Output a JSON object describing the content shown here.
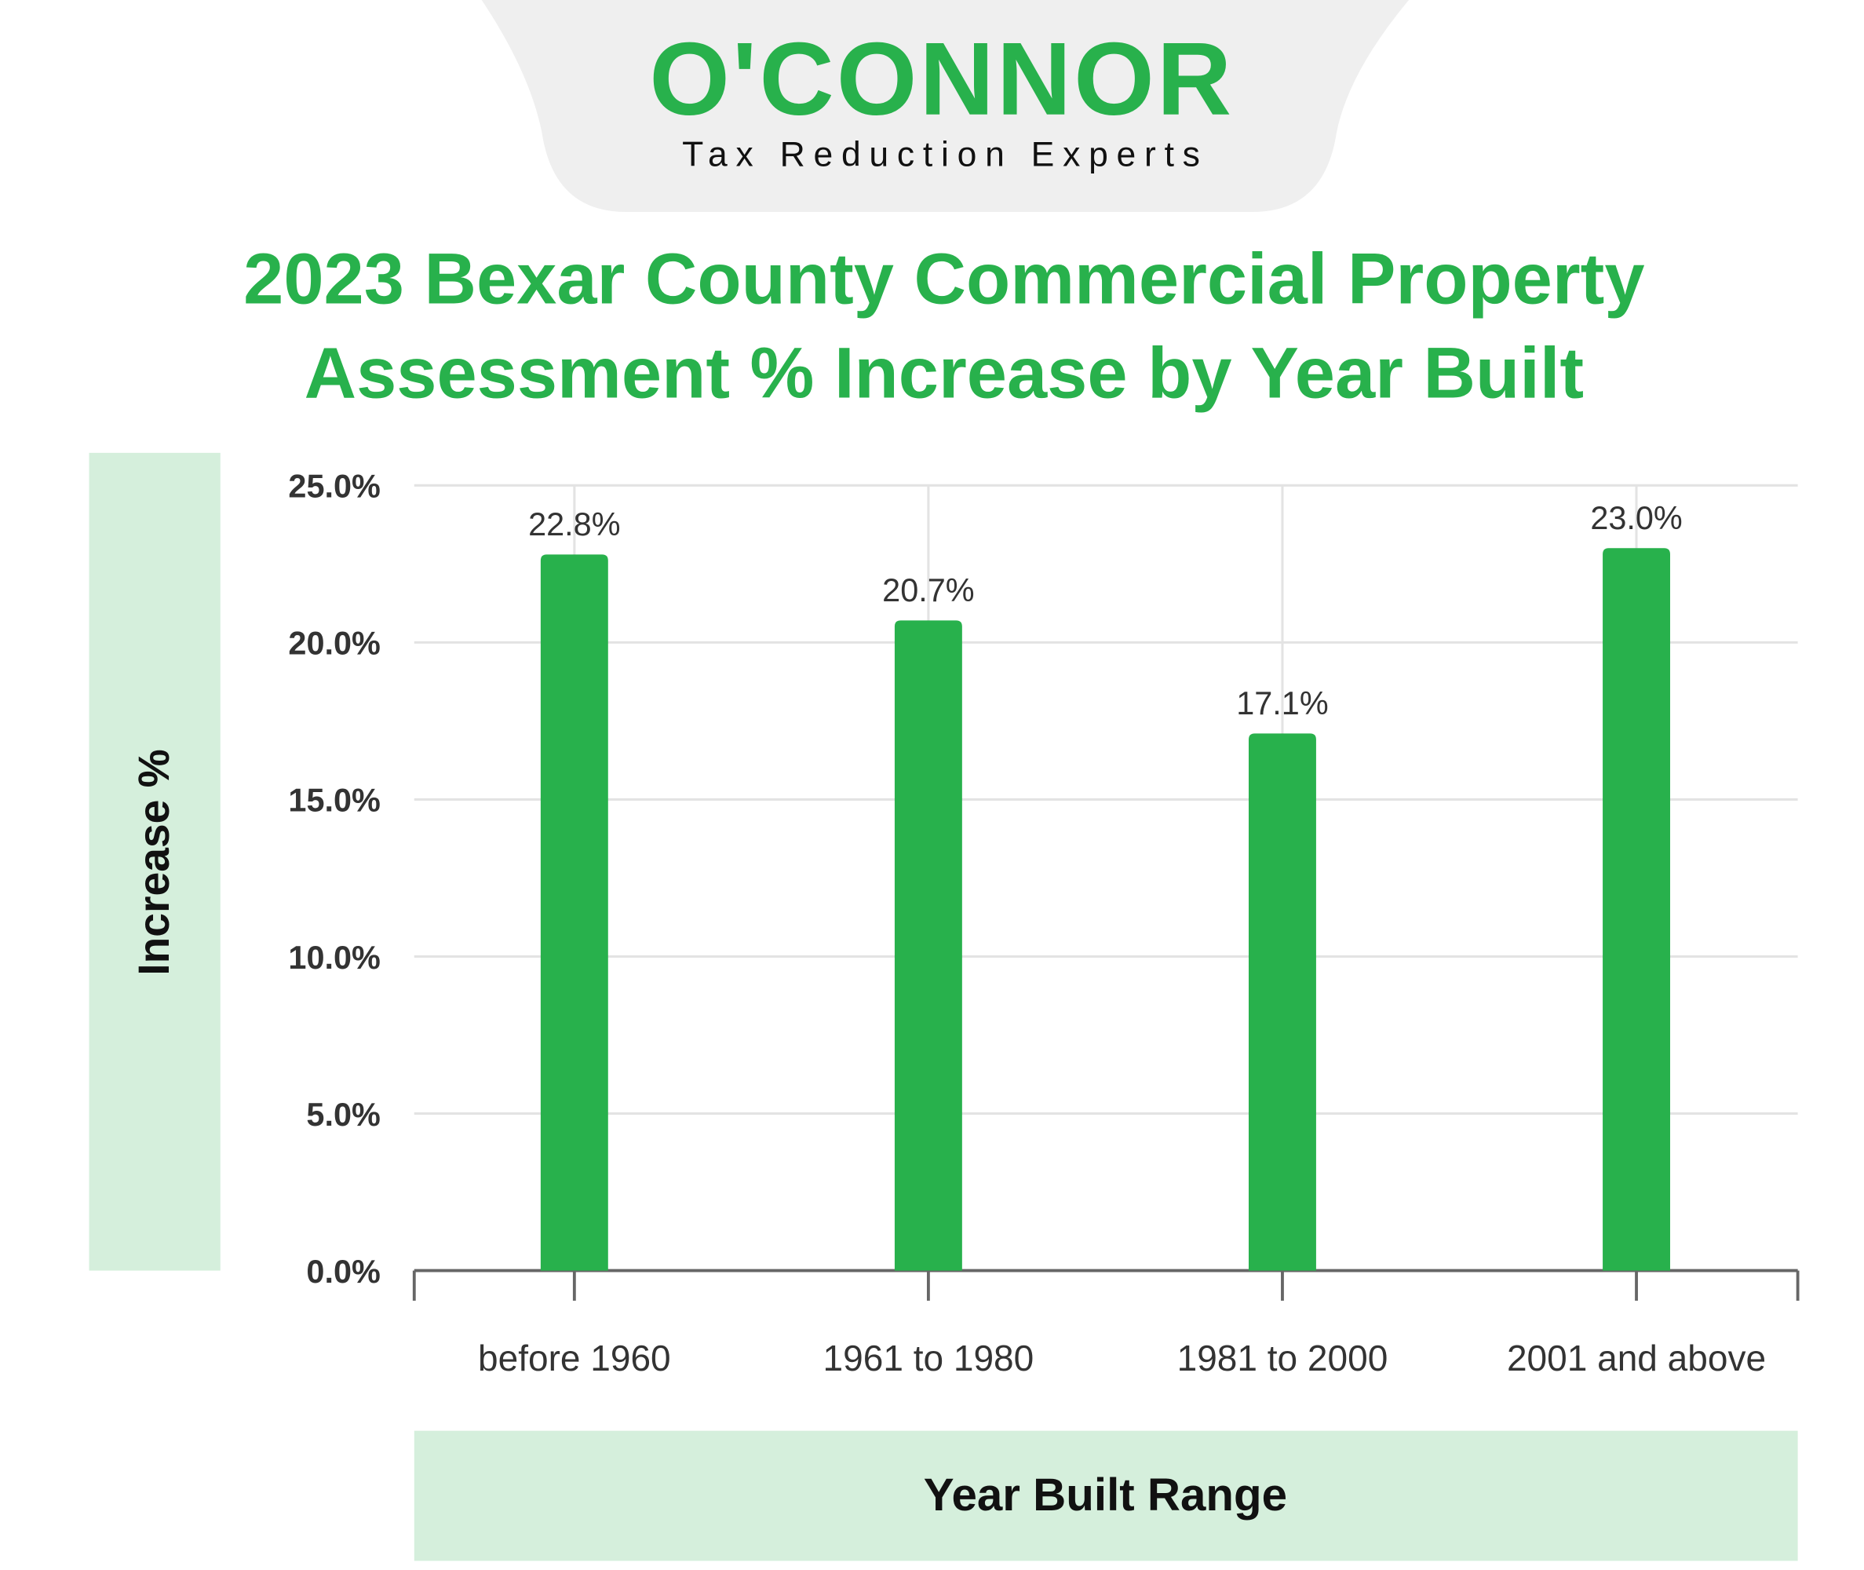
{
  "header": {
    "brand": "O'CONNOR",
    "tagline": "Tax Reduction Experts"
  },
  "chart_data": {
    "type": "bar",
    "title": [
      "2023 Bexar County Commercial Property",
      "Assessment % Increase by Year Built"
    ],
    "y_label": "Increase %",
    "x_label": "Year Built Range",
    "categories": [
      "before 1960",
      "1961 to 1980",
      "1981 to 2000",
      "2001 and above"
    ],
    "values": [
      22.8,
      20.7,
      17.1,
      23.0
    ],
    "value_labels": [
      "22.8%",
      "20.7%",
      "17.1%",
      "23.0%"
    ],
    "color": "#28b14c",
    "ylim": [
      0,
      25
    ],
    "yticks": [
      {
        "value": 0,
        "label": "0.0%"
      },
      {
        "value": 5,
        "label": "5.0%"
      },
      {
        "value": 10,
        "label": "10.0%"
      },
      {
        "value": 15,
        "label": "15.0%"
      },
      {
        "value": 20,
        "label": "20.0%"
      },
      {
        "value": 25,
        "label": "25.0%"
      }
    ],
    "grid": true
  }
}
